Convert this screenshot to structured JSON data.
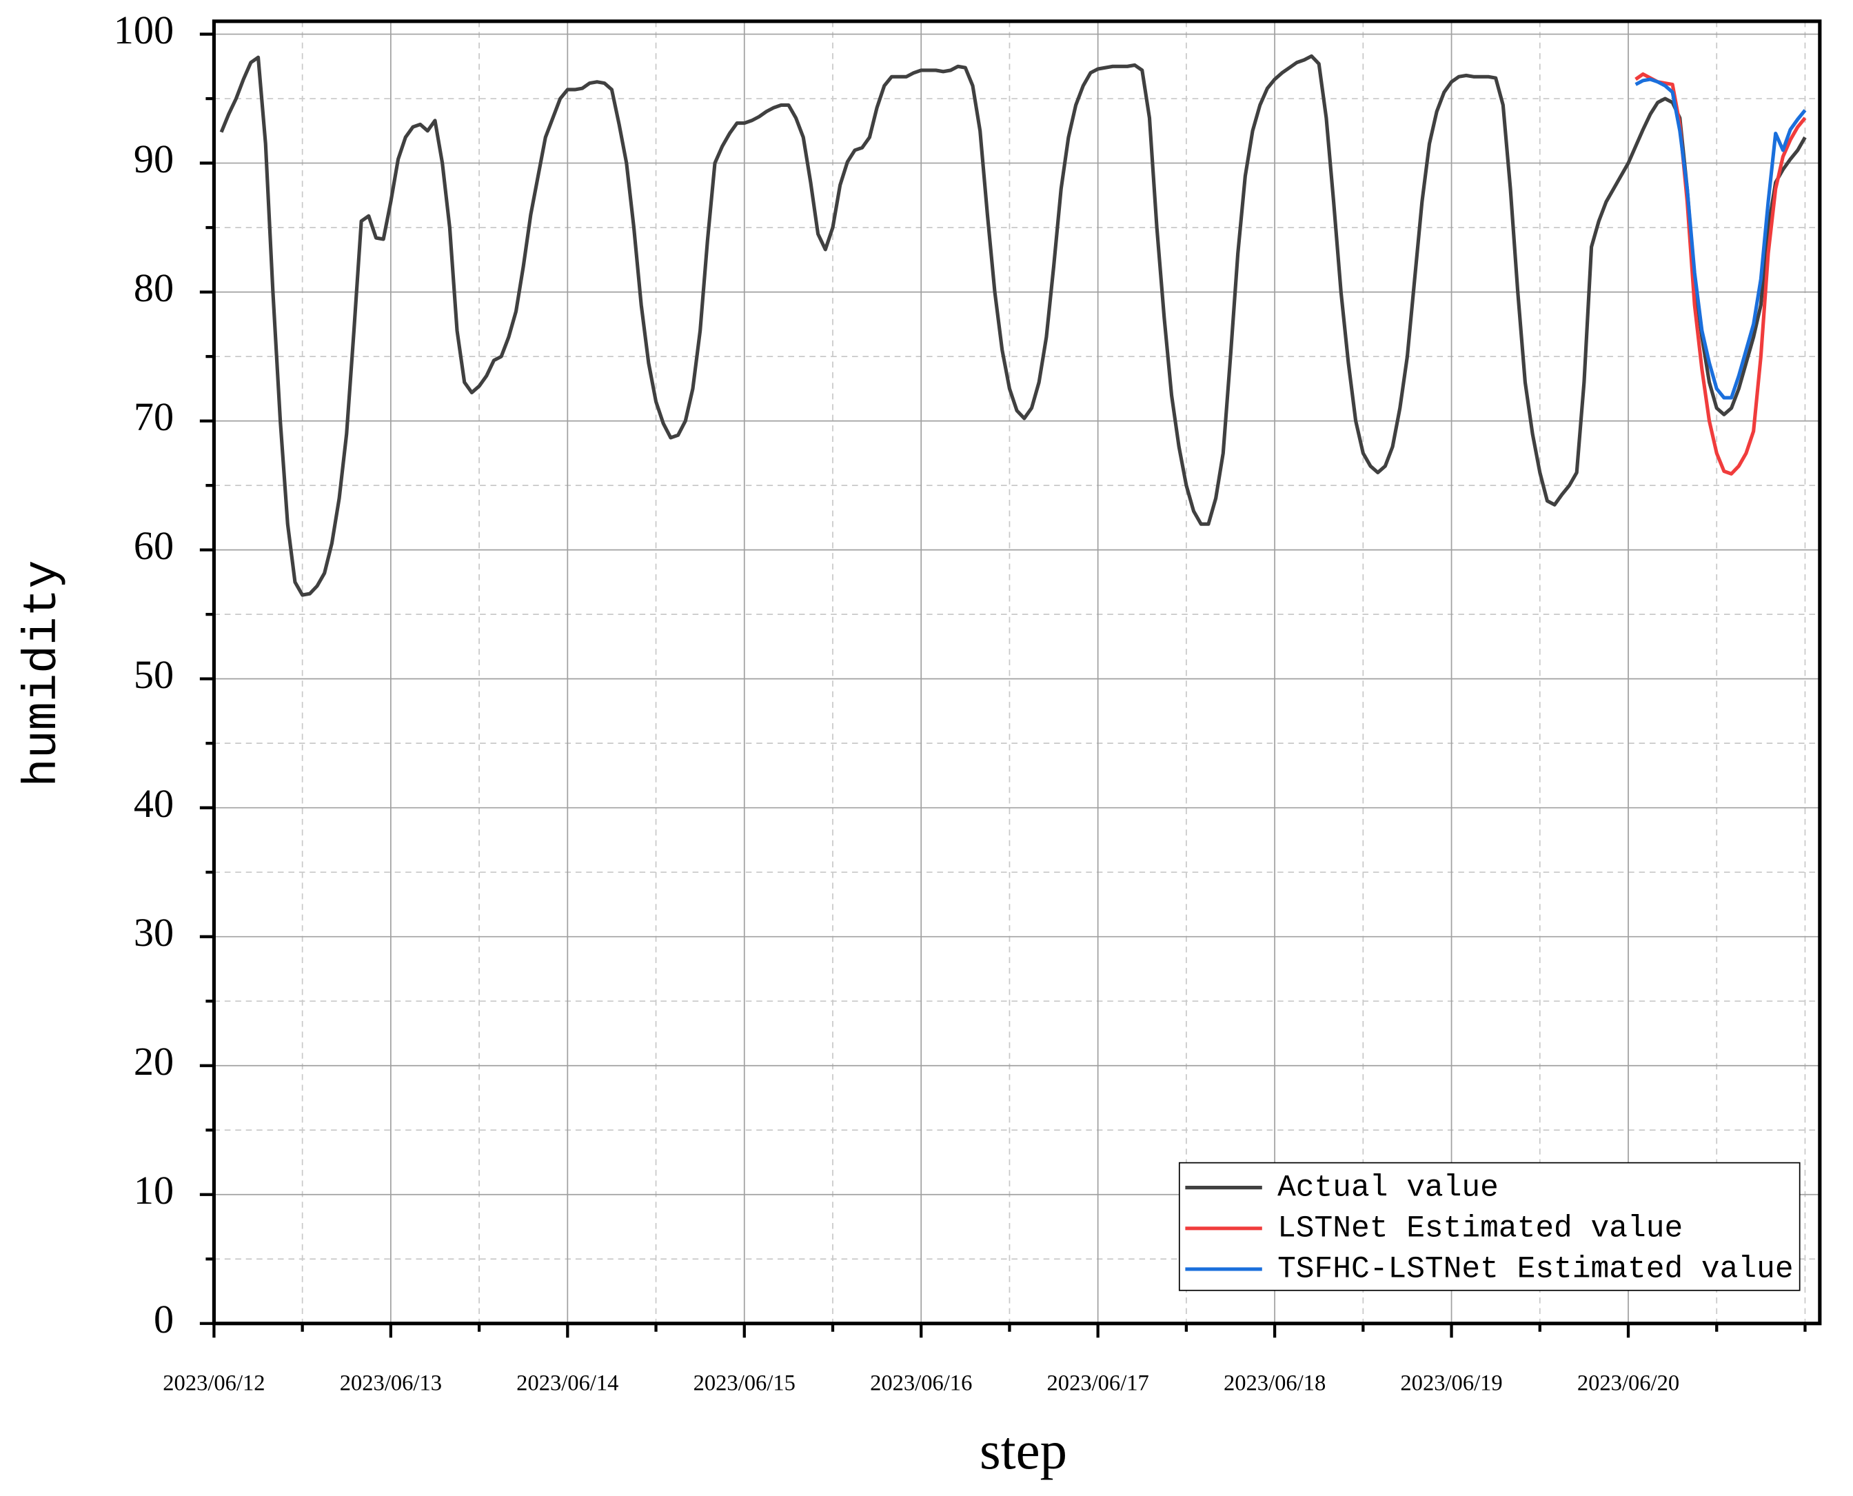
{
  "chart_data": {
    "type": "line",
    "x_label": "step",
    "y_label": "humidity",
    "xlim": [
      0,
      218
    ],
    "ylim": [
      0,
      101
    ],
    "xticks": [
      {
        "value": 0,
        "label": "2023/06/12"
      },
      {
        "value": 24,
        "label": "2023/06/13"
      },
      {
        "value": 48,
        "label": "2023/06/14"
      },
      {
        "value": 72,
        "label": "2023/06/15"
      },
      {
        "value": 96,
        "label": "2023/06/16"
      },
      {
        "value": 120,
        "label": "2023/06/17"
      },
      {
        "value": 144,
        "label": "2023/06/18"
      },
      {
        "value": 168,
        "label": "2023/06/19"
      },
      {
        "value": 192,
        "label": "2023/06/20"
      }
    ],
    "xminorticks": [
      12,
      36,
      60,
      84,
      108,
      132,
      156,
      180,
      204,
      216
    ],
    "yticks": [
      0,
      10,
      20,
      30,
      40,
      50,
      60,
      70,
      80,
      90,
      100
    ],
    "yminorticks": [
      5,
      15,
      25,
      35,
      45,
      55,
      65,
      75,
      85,
      95
    ],
    "grid": true,
    "legend": "lower right",
    "series": [
      {
        "name": "Actual value",
        "color": "#404040",
        "x": [
          1,
          2,
          3,
          4,
          5,
          6,
          7,
          8,
          9,
          10,
          11,
          12,
          13,
          14,
          15,
          16,
          17,
          18,
          19,
          20,
          21,
          22,
          23,
          24,
          25,
          26,
          27,
          28,
          29,
          30,
          31,
          32,
          33,
          34,
          35,
          36,
          37,
          38,
          39,
          40,
          41,
          42,
          43,
          44,
          45,
          46,
          47,
          48,
          49,
          50,
          51,
          52,
          53,
          54,
          55,
          56,
          57,
          58,
          59,
          60,
          61,
          62,
          63,
          64,
          65,
          66,
          67,
          68,
          69,
          70,
          71,
          72,
          73,
          74,
          75,
          76,
          77,
          78,
          79,
          80,
          81,
          82,
          83,
          84,
          85,
          86,
          87,
          88,
          89,
          90,
          91,
          92,
          93,
          94,
          95,
          96,
          97,
          98,
          99,
          100,
          101,
          102,
          103,
          104,
          105,
          106,
          107,
          108,
          109,
          110,
          111,
          112,
          113,
          114,
          115,
          116,
          117,
          118,
          119,
          120,
          121,
          122,
          123,
          124,
          125,
          126,
          127,
          128,
          129,
          130,
          131,
          132,
          133,
          134,
          135,
          136,
          137,
          138,
          139,
          140,
          141,
          142,
          143,
          144,
          145,
          146,
          147,
          148,
          149,
          150,
          151,
          152,
          153,
          154,
          155,
          156,
          157,
          158,
          159,
          160,
          161,
          162,
          163,
          164,
          165,
          166,
          167,
          168,
          169,
          170,
          171,
          172,
          173,
          174,
          175,
          176,
          177,
          178,
          179,
          180,
          181,
          182,
          183,
          184,
          185,
          186,
          187,
          188,
          189,
          190,
          191,
          192,
          193,
          194,
          195,
          196,
          197,
          198,
          199,
          200,
          201,
          202,
          203,
          204,
          205,
          206,
          207,
          208,
          209,
          210,
          211,
          212,
          213,
          214,
          215,
          216
        ],
        "values": [
          92.4,
          93.8,
          95,
          96.5,
          97.8,
          98.2,
          91.5,
          80,
          70,
          62,
          57.5,
          56.5,
          56.6,
          57.2,
          58.2,
          60.5,
          64,
          69,
          77,
          85.5,
          85.9,
          84.2,
          84.1,
          87,
          90.3,
          92,
          92.8,
          93,
          92.5,
          93.3,
          90,
          85,
          77,
          73,
          72.2,
          72.7,
          73.5,
          74.7,
          75,
          76.5,
          78.5,
          82,
          86,
          89,
          92,
          93.5,
          95,
          95.7,
          95.7,
          95.8,
          96.2,
          96.3,
          96.2,
          95.7,
          93,
          90,
          85,
          79,
          74.5,
          71.5,
          69.8,
          68.7,
          68.9,
          70,
          72.5,
          77,
          84,
          90,
          91.3,
          92.3,
          93.1,
          93.1,
          93.3,
          93.6,
          94,
          94.3,
          94.5,
          94.5,
          93.5,
          92,
          88.5,
          84.5,
          83.3,
          85,
          88.3,
          90.1,
          91,
          91.2,
          92,
          94.3,
          96,
          96.7,
          96.7,
          96.7,
          97,
          97.2,
          97.2,
          97.2,
          97.1,
          97.2,
          97.5,
          97.4,
          96,
          92.5,
          86,
          80,
          75.5,
          72.5,
          70.8,
          70.2,
          71,
          73,
          76.5,
          82,
          88,
          92,
          94.5,
          96,
          97,
          97.3,
          97.4,
          97.5,
          97.5,
          97.5,
          97.6,
          97.2,
          93.5,
          85,
          78,
          72,
          68,
          65,
          63,
          62,
          62,
          64,
          67.5,
          75,
          83,
          89,
          92.5,
          94.5,
          95.8,
          96.5,
          97,
          97.4,
          97.8,
          98,
          98.3,
          97.7,
          93.5,
          87,
          80,
          74.5,
          70,
          67.5,
          66.5,
          66,
          66.5,
          68,
          71,
          75,
          81,
          87,
          91.5,
          94,
          95.5,
          96.3,
          96.7,
          96.8,
          96.7,
          96.7,
          96.7,
          96.6,
          94.5,
          88,
          80,
          73,
          69,
          66,
          63.8,
          63.5,
          64.3,
          65,
          66,
          73,
          83.5,
          85.5,
          87,
          88,
          89,
          90,
          91.3,
          92.6,
          93.8,
          94.7,
          95,
          94.7,
          93.5,
          88,
          81,
          76.5,
          73,
          71,
          70.5,
          71,
          72.5,
          74.5,
          76.5,
          79,
          85,
          88.5,
          89.5,
          90.3,
          91,
          92
        ]
      },
      {
        "name": "LSTNet Estimated value",
        "color": "#f03c3c",
        "x": [
          193,
          194,
          195,
          196,
          197,
          198,
          199,
          200,
          201,
          202,
          203,
          204,
          205,
          206,
          207,
          208,
          209,
          210,
          211,
          212,
          213,
          214,
          215,
          216
        ],
        "values": [
          96.5,
          96.9,
          96.6,
          96.3,
          96.2,
          96.1,
          93,
          87,
          79,
          74,
          70,
          67.5,
          66.1,
          65.9,
          66.5,
          67.5,
          69.2,
          75,
          83,
          88,
          90.5,
          91.8,
          92.8,
          93.5
        ]
      },
      {
        "name": "TSFHC-LSTNet Estimated value",
        "color": "#1a6fdc",
        "x": [
          193,
          194,
          195,
          196,
          197,
          198,
          199,
          200,
          201,
          202,
          203,
          204,
          205,
          206,
          207,
          208,
          209,
          210,
          211,
          212,
          213,
          214,
          215,
          216
        ],
        "values": [
          96.1,
          96.4,
          96.5,
          96.3,
          96,
          95.5,
          92.5,
          88,
          81.5,
          77,
          74.5,
          72.5,
          71.8,
          71.8,
          73.5,
          75.5,
          77.5,
          81,
          87,
          92.3,
          91,
          92.6,
          93.4,
          94.1
        ]
      }
    ]
  }
}
